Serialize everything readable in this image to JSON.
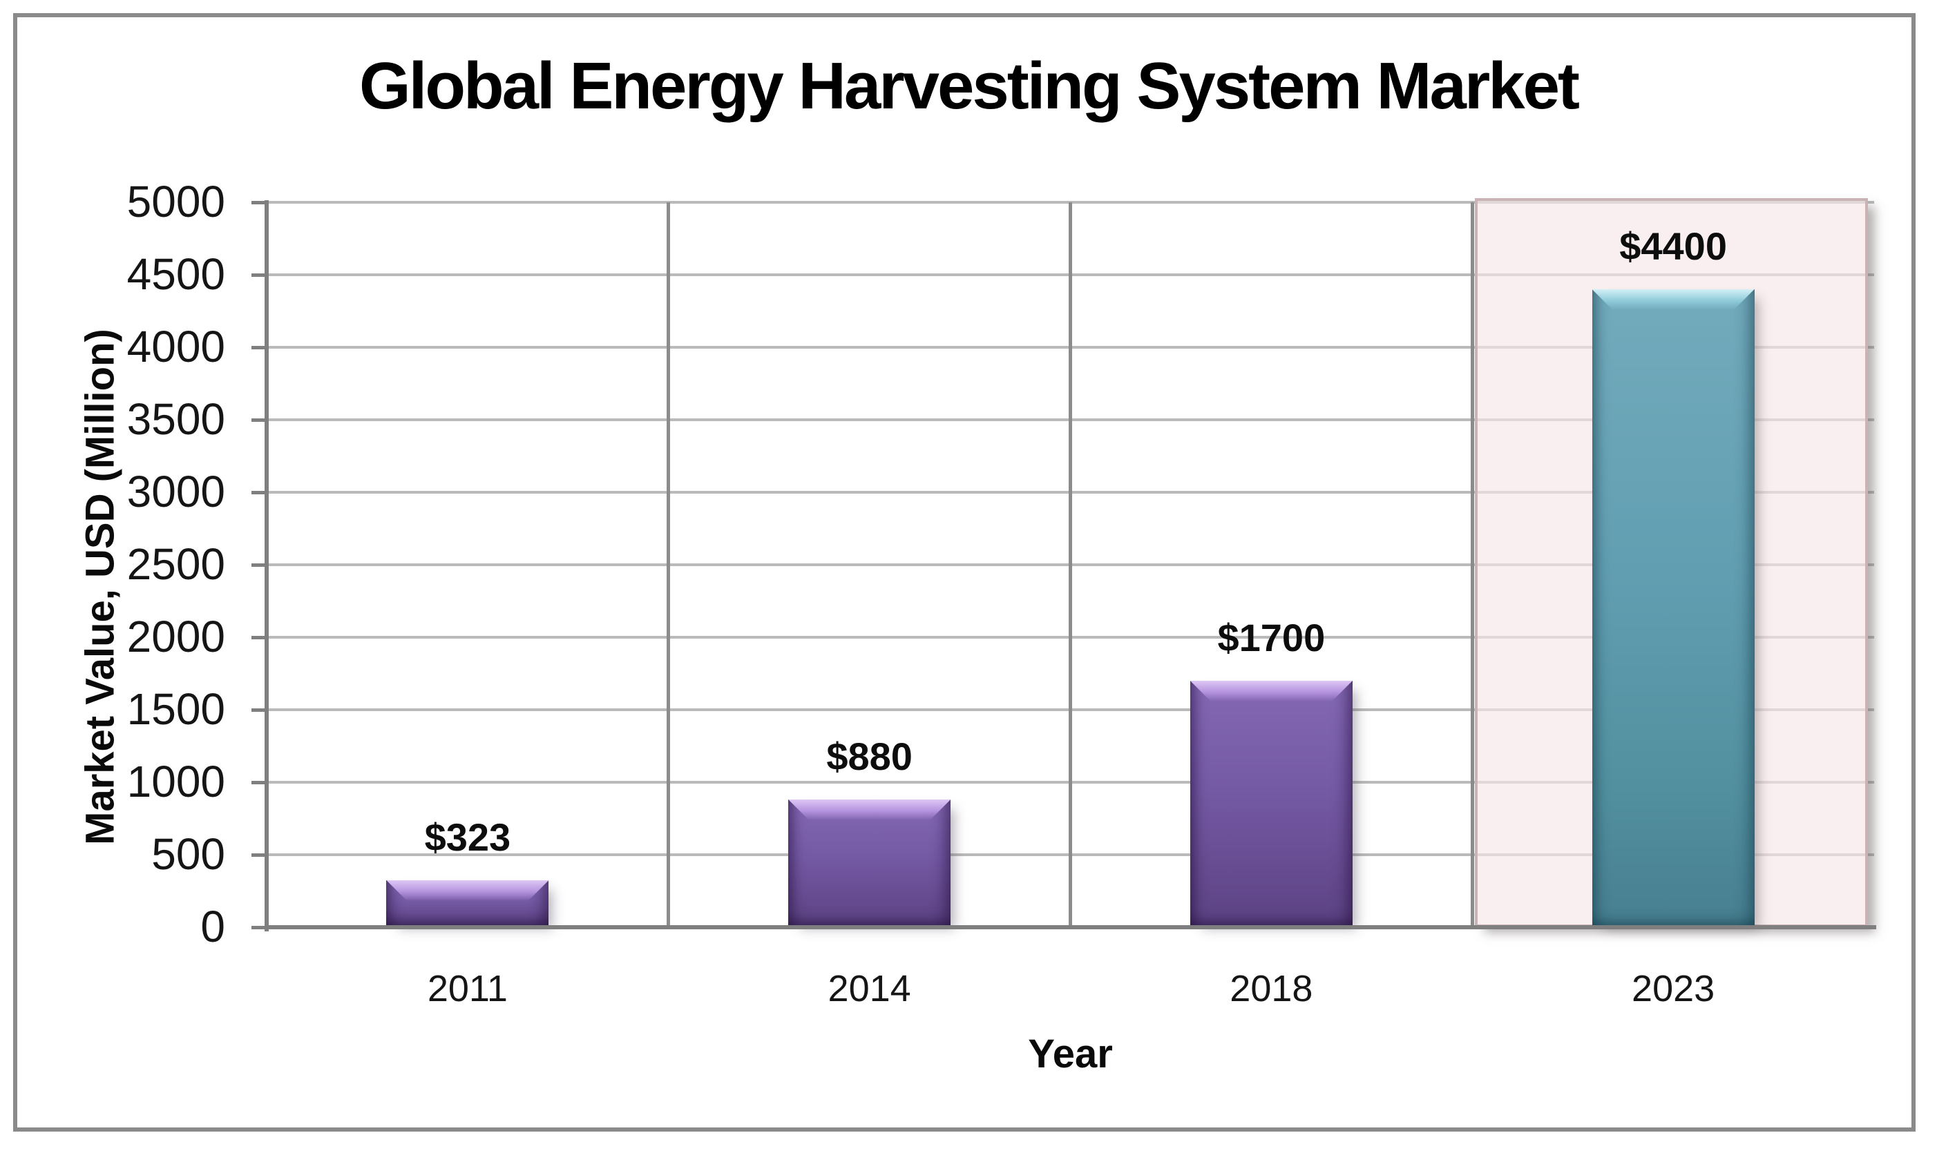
{
  "page": {
    "title": "Global Energy Harvesting System Market"
  },
  "chart_data": {
    "type": "bar",
    "title": "Global Energy Harvesting System Market",
    "xlabel": "Year",
    "ylabel": "Market Value, USD (Million)",
    "categories": [
      "2011",
      "2014",
      "2018",
      "2023"
    ],
    "values": [
      323,
      880,
      1700,
      4400
    ],
    "data_labels": [
      "$323",
      "$880",
      "$1700",
      "$4400"
    ],
    "bar_colors": [
      "purple",
      "purple",
      "purple",
      "teal"
    ],
    "highlighted_category": "2023",
    "ylim": [
      0,
      5000
    ],
    "ytick_step": 500,
    "ytick_labels": [
      "0",
      "500",
      "1000",
      "1500",
      "2000",
      "2500",
      "3000",
      "3500",
      "4000",
      "4500",
      "5000"
    ],
    "grid": "horizontal major gridlines plus vertical category separators",
    "legend": "none"
  },
  "colors": {
    "purple_bar_main": "#7459a4",
    "purple_bar_light": "#ddc7f5",
    "purple_bar_dark": "#5b4383",
    "teal_bar_main": "#619eb1",
    "teal_bar_light": "#d2f0f6",
    "teal_bar_dark": "#477f90",
    "highlight_fill": "rgba(247,230,232,0.65)",
    "highlight_border": "#c9b3b5",
    "gridline": "#bababa",
    "category_line": "#8c8c8c",
    "axis": "#7f7f7f",
    "frame_border": "#8a8a8a",
    "text": "#0a0a0a"
  }
}
